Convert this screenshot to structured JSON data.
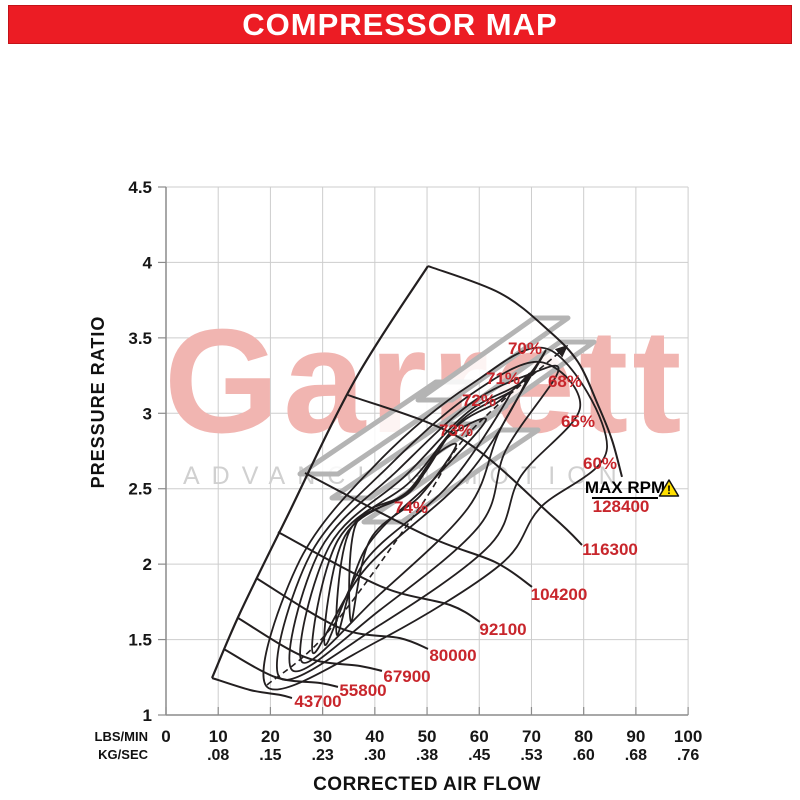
{
  "title": "COMPRESSOR MAP",
  "watermark": {
    "brand": "Garrett",
    "tagline": "ADVANCING MOTION"
  },
  "colors": {
    "banner_red": "#EC1C24",
    "label_red": "#C8262C",
    "curve_black": "#231F20",
    "grid_gray": "#CDCDCD",
    "axis_gray": "#8C8C8C",
    "watermark_pink": "#F1B5B1",
    "watermark_gray": "#B4B4B4",
    "warning_yellow": "#FFDF00"
  },
  "chart_data": {
    "type": "line",
    "title": "COMPRESSOR MAP",
    "xlabel": "CORRECTED AIR FLOW",
    "ylabel": "PRESSURE RATIO",
    "x_unit_rows": [
      {
        "name": "LBS/MIN",
        "labels": [
          "0",
          "10",
          "20",
          "30",
          "40",
          "50",
          "60",
          "70",
          "80",
          "90",
          "100"
        ]
      },
      {
        "name": "KG/SEC",
        "labels": [
          "",
          ".08",
          ".15",
          ".23",
          ".30",
          ".38",
          ".45",
          ".53",
          ".60",
          ".68",
          ".76"
        ]
      }
    ],
    "x_tick_values": [
      0,
      10,
      20,
      30,
      40,
      50,
      60,
      70,
      80,
      90,
      100
    ],
    "y_tick_values": [
      1,
      1.5,
      2,
      2.5,
      3,
      3.5,
      4,
      4.5
    ],
    "y_tick_labels": [
      "1",
      "1.5",
      "2",
      "2.5",
      "3",
      "3.5",
      "4",
      "4.5"
    ],
    "xlim": [
      0,
      100
    ],
    "ylim": [
      1,
      4.5
    ],
    "grid": true,
    "surge_line": {
      "points": [
        [
          8.81,
          1.245
        ],
        [
          14.17,
          1.676
        ],
        [
          23.17,
          2.313
        ],
        [
          36.2,
          3.221
        ],
        [
          50.18,
          3.976
        ]
      ]
    },
    "speed_lines": [
      {
        "rpm": "43700",
        "points": [
          [
            8.81,
            1.245
          ],
          [
            16.09,
            1.166
          ],
          [
            21.84,
            1.133
          ],
          [
            24.13,
            1.113
          ]
        ],
        "label_pos": [
          29.11,
          1.093
        ]
      },
      {
        "rpm": "55800",
        "points": [
          [
            11.11,
            1.437
          ],
          [
            20.88,
            1.252
          ],
          [
            29.5,
            1.212
          ],
          [
            32.94,
            1.186
          ]
        ],
        "label_pos": [
          37.73,
          1.166
        ]
      },
      {
        "rpm": "67900",
        "points": [
          [
            13.79,
            1.643
          ],
          [
            26.62,
            1.384
          ],
          [
            37.16,
            1.325
          ],
          [
            41.37,
            1.292
          ]
        ],
        "label_pos": [
          46.16,
          1.259
        ]
      },
      {
        "rpm": "80000",
        "points": [
          [
            17.24,
            1.908
          ],
          [
            33.33,
            1.577
          ],
          [
            44.82,
            1.51
          ],
          [
            50.18,
            1.438
          ]
        ],
        "label_pos": [
          54.97,
          1.398
        ]
      },
      {
        "rpm": "92100",
        "points": [
          [
            21.45,
            2.213
          ],
          [
            40.99,
            1.855
          ],
          [
            54.4,
            1.729
          ],
          [
            60.14,
            1.617
          ]
        ],
        "label_pos": [
          64.55,
          1.57
        ]
      },
      {
        "rpm": "104200",
        "points": [
          [
            26.62,
            2.604
          ],
          [
            49.61,
            2.193
          ],
          [
            63.01,
            2.014
          ],
          [
            70.1,
            1.849
          ]
        ],
        "label_pos": [
          75.27,
          1.802
        ]
      },
      {
        "rpm": "116300",
        "points": [
          [
            34.86,
            3.121
          ],
          [
            56.31,
            2.836
          ],
          [
            74.12,
            2.313
          ],
          [
            79.68,
            2.127
          ]
        ],
        "label_pos": [
          85.04,
          2.1
        ]
      },
      {
        "rpm": "128400",
        "points": [
          [
            50.18,
            3.976
          ],
          [
            63.97,
            3.797
          ],
          [
            73.17,
            3.552
          ],
          [
            78.91,
            3.34
          ],
          [
            82.74,
            3.055
          ],
          [
            85.42,
            2.823
          ],
          [
            87.34,
            2.578
          ]
        ],
        "label_pos": [
          87.15,
          2.385
        ]
      }
    ],
    "efficiency_islands": [
      {
        "label": "60%",
        "label_pos": [
          83.13,
          2.67
        ],
        "points": [
          [
            19.34,
            1.186
          ],
          [
            25.67,
            2.028
          ],
          [
            40.99,
            2.69
          ],
          [
            58.23,
            3.187
          ],
          [
            73.55,
            3.42
          ],
          [
            84.47,
            2.77
          ],
          [
            71.63,
            2.372
          ],
          [
            63.97,
            1.994
          ],
          [
            40.99,
            1.497
          ]
        ]
      },
      {
        "label": "65%",
        "label_pos": [
          78.91,
          2.949
        ],
        "points": [
          [
            21.84,
            1.245
          ],
          [
            27.58,
            2.06
          ],
          [
            42.9,
            2.657
          ],
          [
            58.23,
            3.121
          ],
          [
            71.63,
            3.34
          ],
          [
            79.29,
            3.035
          ],
          [
            68.0,
            2.584
          ],
          [
            62.06,
            2.127
          ],
          [
            40.99,
            1.597
          ]
        ]
      },
      {
        "label": "68%",
        "label_pos": [
          76.42,
          3.214
        ],
        "points": [
          [
            24.13,
            1.298
          ],
          [
            29.5,
            2.094
          ],
          [
            44.43,
            2.624
          ],
          [
            58.23,
            3.062
          ],
          [
            69.72,
            3.26
          ],
          [
            75.08,
            3.274
          ],
          [
            65.12,
            2.757
          ],
          [
            60.14,
            2.26
          ],
          [
            40.99,
            1.696
          ]
        ]
      },
      {
        "label": "70%",
        "label_pos": [
          68.76,
          3.433
        ],
        "points": [
          [
            26.05,
            1.351
          ],
          [
            31.41,
            2.127
          ],
          [
            45.78,
            2.584
          ],
          [
            57.84,
            3.009
          ],
          [
            68.19,
            3.207
          ],
          [
            72.59,
            3.406
          ],
          [
            63.97,
            2.889
          ],
          [
            57.84,
            2.372
          ],
          [
            40.61,
            1.789
          ]
        ]
      },
      {
        "label": "71%",
        "label_pos": [
          64.55,
          3.234
        ],
        "points": [
          [
            28.16,
            1.411
          ],
          [
            32.94,
            2.16
          ],
          [
            46.73,
            2.545
          ],
          [
            56.69,
            2.956
          ],
          [
            65.89,
            3.141
          ],
          [
            69.34,
            3.234
          ],
          [
            58.0,
            2.6
          ],
          [
            38.31,
            1.974
          ]
        ]
      },
      {
        "label": "72%",
        "label_pos": [
          59.95,
          3.088
        ],
        "points": [
          [
            30.46,
            1.464
          ],
          [
            34.28,
            2.187
          ],
          [
            47.12,
            2.505
          ],
          [
            55.35,
            2.902
          ],
          [
            63.02,
            3.062
          ],
          [
            65.51,
            3.101
          ],
          [
            54.01,
            2.52
          ],
          [
            38.31,
            2.028
          ]
        ]
      },
      {
        "label": "73%",
        "label_pos": [
          55.55,
          2.889
        ],
        "points": [
          [
            32.75,
            1.53
          ],
          [
            35.24,
            2.226
          ],
          [
            46.73,
            2.478
          ],
          [
            53.44,
            2.823
          ],
          [
            61.29,
            2.956
          ],
          [
            51.52,
            2.571
          ],
          [
            38.31,
            2.107
          ]
        ]
      },
      {
        "label": "74%",
        "label_pos": [
          46.93,
          2.379
        ],
        "points": [
          [
            35.43,
            1.617
          ],
          [
            36.39,
            2.266
          ],
          [
            45.78,
            2.465
          ],
          [
            51.52,
            2.717
          ],
          [
            55.55,
            2.783
          ],
          [
            48.65,
            2.452
          ],
          [
            39.08,
            2.16
          ]
        ]
      }
    ],
    "efficiency_axis": {
      "dashed": true,
      "arrow": true,
      "points": [
        [
          19.34,
          1.199
        ],
        [
          30.84,
          1.544
        ],
        [
          48.65,
          2.379
        ],
        [
          58.23,
          2.876
        ],
        [
          76.8,
          3.447
        ]
      ]
    },
    "max_rpm_annotation": {
      "label": "MAX RPM",
      "value": "128400",
      "label_pos": [
        87.91,
        2.498
      ],
      "warning_icon_pos": [
        96.34,
        2.498
      ]
    }
  }
}
